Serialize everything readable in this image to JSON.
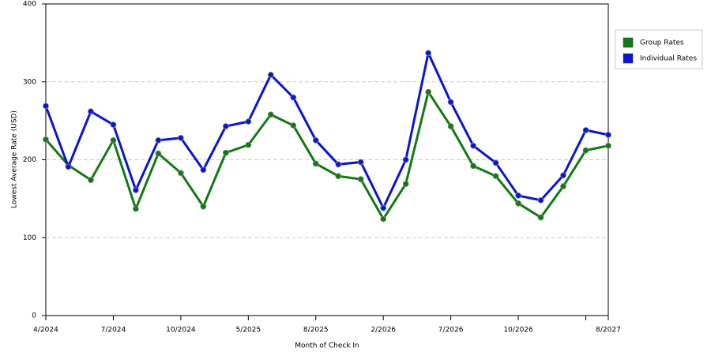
{
  "chart_data": {
    "type": "line",
    "xlabel": "Month of Check In",
    "ylabel": "Lowest Average Rate (USD)",
    "categories": [
      "4/2024",
      null,
      null,
      "7/2024",
      null,
      null,
      "10/2024",
      null,
      null,
      "5/2025",
      null,
      null,
      "8/2025",
      null,
      null,
      "2/2026",
      null,
      null,
      "7/2026",
      null,
      null,
      "10/2026",
      null,
      null,
      null,
      "8/2027"
    ],
    "series": [
      {
        "name": "Group Rates",
        "color": "#137a13",
        "values": [
          226,
          193,
          174,
          225,
          137,
          208,
          183,
          140,
          209,
          219,
          258,
          244,
          195,
          179,
          175,
          124,
          169,
          287,
          243,
          192,
          179,
          144,
          126,
          166,
          212,
          218
        ]
      },
      {
        "name": "Individual Rates",
        "color": "#0a14d4",
        "values": [
          269,
          191,
          262,
          245,
          161,
          225,
          228,
          187,
          243,
          249,
          309,
          280,
          225,
          194,
          197,
          138,
          200,
          337,
          274,
          218,
          196,
          154,
          148,
          180,
          238,
          232
        ]
      }
    ],
    "ylim": [
      0,
      400
    ],
    "yticks": [
      0,
      100,
      200,
      300,
      400
    ],
    "grid": true,
    "legend": "right"
  }
}
